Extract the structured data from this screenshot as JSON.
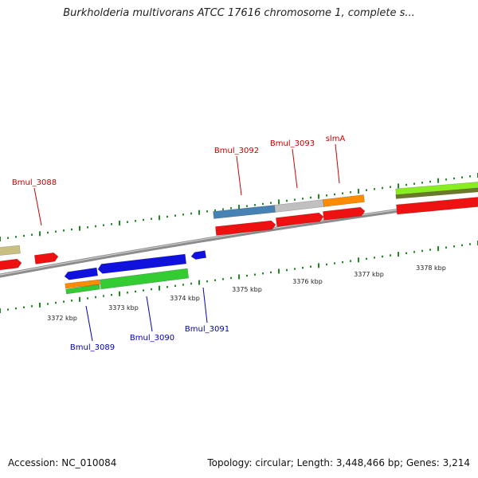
{
  "title": "Burkholderia multivorans ATCC 17616 chromosome 1, complete s...",
  "footer": {
    "accession": "Accession: NC_010084",
    "summary": "Topology: circular; Length: 3,448,466 bp; Genes: 3,214"
  },
  "colors": {
    "backbone": "#8c8c8c",
    "tick": "#1f8a1f",
    "plus_label": "#cc0000",
    "minus_label": "#0000bb",
    "red": "#ee1111",
    "blue": "#1111dd",
    "green": "#33cc33",
    "orange": "#ff8c00",
    "steelblue": "#4682b4",
    "lightgray": "#c0c0c0",
    "khaki": "#c8c080",
    "lime": "#88ee22",
    "olive": "#6b7a2a"
  },
  "scale": {
    "ticks": [
      "3372 kbp",
      "3373 kbp",
      "3374 kbp",
      "3375 kbp",
      "3376 kbp",
      "3377 kbp",
      "3378 kbp"
    ]
  },
  "gene_labels": [
    {
      "text": "Bmul_3088",
      "strand": "plus"
    },
    {
      "text": "Bmul_3092",
      "strand": "plus"
    },
    {
      "text": "Bmul_3093",
      "strand": "plus"
    },
    {
      "text": "slmA",
      "strand": "plus"
    },
    {
      "text": "Bmul_3089",
      "strand": "minus"
    },
    {
      "text": "Bmul_3090",
      "strand": "minus"
    },
    {
      "text": "Bmul_3091",
      "strand": "minus"
    }
  ]
}
